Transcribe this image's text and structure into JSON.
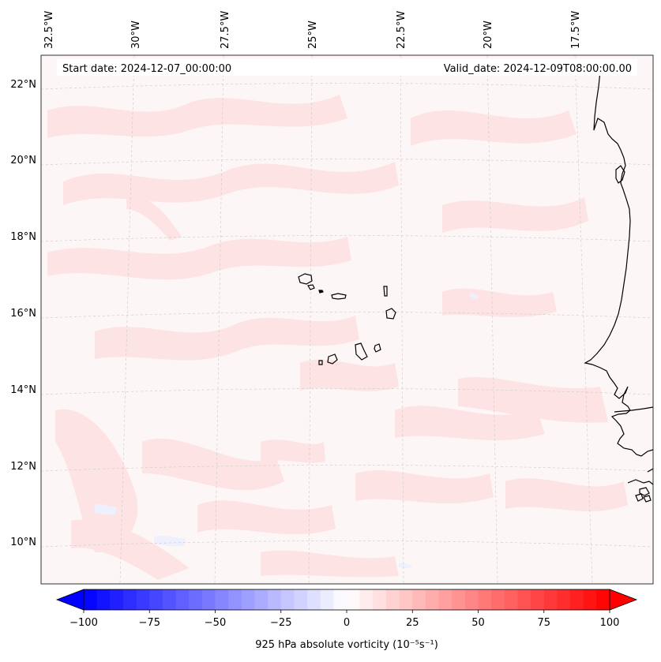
{
  "header": {
    "start_date": "Start date: 2024-12-07_00:00:00",
    "valid_date": "Valid_date: 2024-12-09T08:00:00.00"
  },
  "axes": {
    "lon_labels": [
      "32.5°W",
      "30°W",
      "27.5°W",
      "25°W",
      "22.5°W",
      "20°W",
      "17.5°W"
    ],
    "lat_labels": [
      "22°N",
      "20°N",
      "18°N",
      "16°N",
      "14°N",
      "12°N",
      "10°N"
    ]
  },
  "colorbar": {
    "ticks": [
      "−100",
      "−75",
      "−50",
      "−25",
      "0",
      "25",
      "50",
      "75",
      "100"
    ],
    "label": "925 hPa absolute vorticity (10⁻⁵s⁻¹)",
    "min": -100,
    "max": 100,
    "step": 5,
    "colors": {
      "negative": "#0000ff",
      "zero": "#ffffff",
      "positive": "#ff0000"
    }
  },
  "map": {
    "ocean_tint": "#fdf6f6",
    "streak_color": "#fde2e2",
    "coast_color": "#000000",
    "grid_color": "#c8c8c8"
  }
}
